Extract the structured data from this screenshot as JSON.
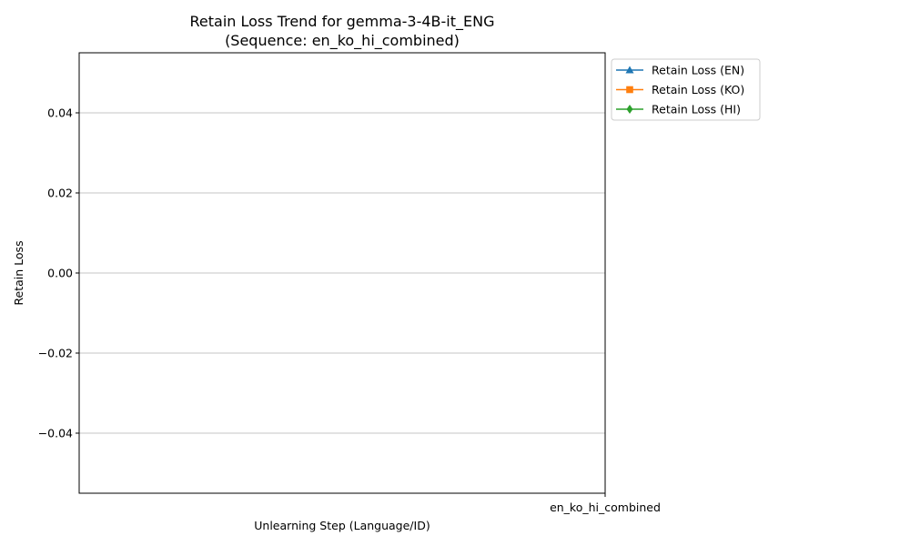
{
  "chart_data": {
    "type": "line",
    "title": "Retain Loss Trend for gemma-3-4B-it_ENG",
    "subtitle": "(Sequence: en_ko_hi_combined)",
    "xlabel": "Unlearning Step (Language/ID)",
    "ylabel": "Retain Loss",
    "categories": [
      "en_ko_hi_combined"
    ],
    "ylim": [
      -0.055,
      0.055
    ],
    "yticks": [
      0.04,
      0.02,
      0.0,
      -0.02,
      -0.04
    ],
    "ytick_labels": [
      "0.04",
      "0.02",
      "0.00",
      "−0.02",
      "−0.04"
    ],
    "grid": "y",
    "legend_placement": "outside-top-right",
    "series": [
      {
        "name": "Retain Loss (EN)",
        "marker": "triangle-up-icon",
        "color": "#1f77b4",
        "values": [
          null
        ]
      },
      {
        "name": "Retain Loss (KO)",
        "marker": "square-icon",
        "color": "#ff7f0e",
        "values": [
          null
        ]
      },
      {
        "name": "Retain Loss (HI)",
        "marker": "diamond-icon",
        "color": "#2ca02c",
        "values": [
          null
        ]
      }
    ]
  }
}
